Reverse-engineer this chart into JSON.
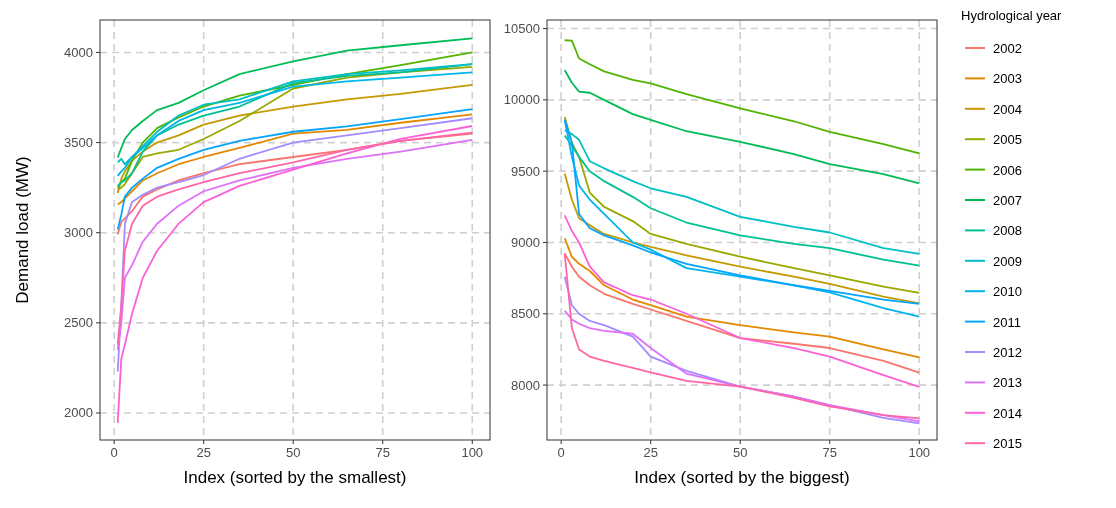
{
  "chart_data": [
    {
      "type": "line",
      "xlabel": "Index (sorted by the smallest)",
      "ylabel": "Demand load (MW)",
      "xlim": [
        -3.95,
        104.95
      ],
      "ylim": [
        1850,
        4180
      ],
      "xticks": [
        0,
        25,
        50,
        75,
        100
      ],
      "yticks": [
        2000,
        2500,
        3000,
        3500,
        4000
      ],
      "grid": true,
      "line_style": "solid",
      "marker": "none",
      "x": [
        1,
        2,
        3,
        5,
        8,
        12,
        18,
        25,
        35,
        50,
        65,
        80,
        100
      ],
      "series": [
        {
          "color": "#f8766d",
          "values": [
            2990,
            3060,
            3080,
            3120,
            3200,
            3240,
            3290,
            3330,
            3380,
            3420,
            3460,
            3510,
            3550
          ]
        },
        {
          "color": "#e38900",
          "values": [
            3157,
            3170,
            3190,
            3230,
            3290,
            3330,
            3380,
            3420,
            3470,
            3550,
            3570,
            3610,
            3657
          ]
        },
        {
          "color": "#c49a00",
          "values": [
            3220,
            3300,
            3340,
            3400,
            3450,
            3500,
            3540,
            3600,
            3650,
            3700,
            3740,
            3770,
            3820
          ]
        },
        {
          "color": "#99a800",
          "values": [
            3240,
            3250,
            3270,
            3330,
            3420,
            3440,
            3460,
            3520,
            3620,
            3800,
            3860,
            3890,
            3920
          ]
        },
        {
          "color": "#53b400",
          "values": [
            3250,
            3280,
            3300,
            3400,
            3500,
            3580,
            3640,
            3700,
            3760,
            3820,
            3880,
            3930,
            4000
          ]
        },
        {
          "color": "#00bc56",
          "values": [
            3417,
            3470,
            3520,
            3570,
            3620,
            3680,
            3720,
            3790,
            3880,
            3950,
            4010,
            4040,
            4078
          ]
        },
        {
          "color": "#00c094",
          "values": [
            3260,
            3280,
            3290,
            3330,
            3450,
            3540,
            3600,
            3650,
            3700,
            3830,
            3870,
            3890,
            3935
          ]
        },
        {
          "color": "#00bfc4",
          "values": [
            3390,
            3410,
            3380,
            3420,
            3480,
            3560,
            3650,
            3710,
            3740,
            3840,
            3880,
            3900,
            3935
          ]
        },
        {
          "color": "#00b6eb",
          "values": [
            3315,
            3340,
            3360,
            3420,
            3470,
            3540,
            3620,
            3680,
            3720,
            3810,
            3840,
            3860,
            3890
          ]
        },
        {
          "color": "#06a4ff",
          "values": [
            3018,
            3100,
            3200,
            3250,
            3300,
            3360,
            3410,
            3460,
            3510,
            3560,
            3590,
            3630,
            3685
          ]
        },
        {
          "color": "#a58aff",
          "values": [
            2230,
            2600,
            3050,
            3170,
            3210,
            3250,
            3280,
            3320,
            3410,
            3500,
            3540,
            3580,
            3635
          ]
        },
        {
          "color": "#df70f8",
          "values": [
            2350,
            2500,
            2750,
            2820,
            2950,
            3050,
            3150,
            3230,
            3290,
            3360,
            3410,
            3450,
            3515
          ]
        },
        {
          "color": "#fb61d7",
          "values": [
            1945,
            2300,
            2380,
            2550,
            2750,
            2900,
            3050,
            3170,
            3260,
            3350,
            3440,
            3520,
            3592
          ]
        },
        {
          "color": "#ff66a8",
          "values": [
            2380,
            2600,
            2900,
            3050,
            3150,
            3200,
            3240,
            3280,
            3330,
            3390,
            3460,
            3510,
            3555
          ]
        }
      ]
    },
    {
      "type": "line",
      "xlabel": "Index (sorted by the biggest)",
      "legend_title": "Hydrological year",
      "legend": "right",
      "xlim": [
        -3.95,
        104.95
      ],
      "ylim": [
        7615,
        10560
      ],
      "xticks": [
        0,
        25,
        50,
        75,
        100
      ],
      "yticks": [
        8000,
        8500,
        9000,
        9500,
        10000,
        10500
      ],
      "grid": true,
      "line_style": "solid",
      "marker": "none",
      "x": [
        1,
        3,
        5,
        8,
        12,
        20,
        25,
        35,
        50,
        65,
        75,
        90,
        100
      ],
      "series": [
        {
          "name": "2002",
          "color": "#f8766d",
          "values": [
            8923,
            8830,
            8760,
            8700,
            8640,
            8570,
            8530,
            8450,
            8330,
            8290,
            8260,
            8170,
            8087
          ]
        },
        {
          "name": "2003",
          "color": "#e38900",
          "values": [
            9029,
            8900,
            8850,
            8800,
            8700,
            8600,
            8560,
            8480,
            8420,
            8370,
            8340,
            8250,
            8195
          ]
        },
        {
          "name": "2004",
          "color": "#c49a00",
          "values": [
            9484,
            9300,
            9170,
            9120,
            9060,
            9000,
            8970,
            8910,
            8830,
            8760,
            8710,
            8620,
            8573
          ]
        },
        {
          "name": "2005",
          "color": "#99a800",
          "values": [
            9880,
            9700,
            9600,
            9350,
            9250,
            9150,
            9060,
            8990,
            8900,
            8820,
            8770,
            8690,
            8647
          ]
        },
        {
          "name": "2006",
          "color": "#53b400",
          "values": [
            10418,
            10415,
            10290,
            10250,
            10200,
            10140,
            10115,
            10040,
            9940,
            9850,
            9775,
            9690,
            9624
          ]
        },
        {
          "name": "2007",
          "color": "#00bc56",
          "values": [
            10208,
            10120,
            10058,
            10050,
            10000,
            9900,
            9860,
            9780,
            9706,
            9620,
            9550,
            9480,
            9414
          ]
        },
        {
          "name": "2008",
          "color": "#00c094",
          "values": [
            9750,
            9680,
            9600,
            9500,
            9430,
            9320,
            9240,
            9140,
            9050,
            8990,
            8960,
            8880,
            8837
          ]
        },
        {
          "name": "2009",
          "color": "#00bfc4",
          "values": [
            9787,
            9760,
            9720,
            9570,
            9520,
            9430,
            9380,
            9320,
            9180,
            9110,
            9070,
            8960,
            8920
          ]
        },
        {
          "name": "2010",
          "color": "#00b6eb",
          "values": [
            9860,
            9600,
            9400,
            9300,
            9200,
            9000,
            8950,
            8820,
            8760,
            8700,
            8650,
            8540,
            8480
          ]
        },
        {
          "name": "2011",
          "color": "#06a4ff",
          "values": [
            9860,
            9700,
            9200,
            9100,
            9050,
            8980,
            8930,
            8850,
            8770,
            8700,
            8660,
            8600,
            8570
          ]
        },
        {
          "name": "2012",
          "color": "#a58aff",
          "values": [
            8760,
            8560,
            8500,
            8450,
            8420,
            8340,
            8200,
            8100,
            7990,
            7920,
            7860,
            7770,
            7732
          ]
        },
        {
          "name": "2013",
          "color": "#df70f8",
          "values": [
            8522,
            8460,
            8430,
            8400,
            8380,
            8360,
            8260,
            8080,
            7990,
            7920,
            7860,
            7790,
            7745
          ]
        },
        {
          "name": "2014",
          "color": "#fb61d7",
          "values": [
            9190,
            9080,
            9000,
            8830,
            8720,
            8630,
            8600,
            8500,
            8330,
            8260,
            8200,
            8070,
            7987
          ]
        },
        {
          "name": "2015",
          "color": "#ff66a8",
          "values": [
            8923,
            8400,
            8250,
            8200,
            8170,
            8120,
            8090,
            8030,
            7990,
            7910,
            7850,
            7790,
            7767
          ]
        }
      ]
    }
  ]
}
